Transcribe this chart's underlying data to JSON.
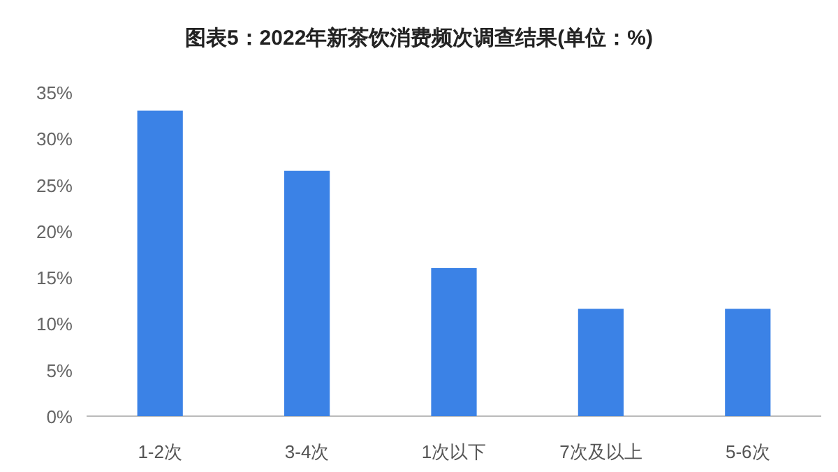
{
  "chart_data": {
    "type": "bar",
    "title": "图表5：2022年新茶饮消费频次调查结果(单位：%)",
    "categories": [
      "1-2次",
      "3-4次",
      "1次以下",
      "7次及以上",
      "5-6次"
    ],
    "values": [
      33.0,
      26.5,
      16.0,
      11.6,
      11.6
    ],
    "color": "#3b82e6",
    "ylim": [
      0,
      35
    ],
    "yticks": [
      {
        "value": 0,
        "label": "0%"
      },
      {
        "value": 5,
        "label": "5%"
      },
      {
        "value": 10,
        "label": "10%"
      },
      {
        "value": 15,
        "label": "15%"
      },
      {
        "value": 20,
        "label": "20%"
      },
      {
        "value": 25,
        "label": "25%"
      },
      {
        "value": 30,
        "label": "30%"
      },
      {
        "value": 35,
        "label": "35%"
      }
    ]
  }
}
